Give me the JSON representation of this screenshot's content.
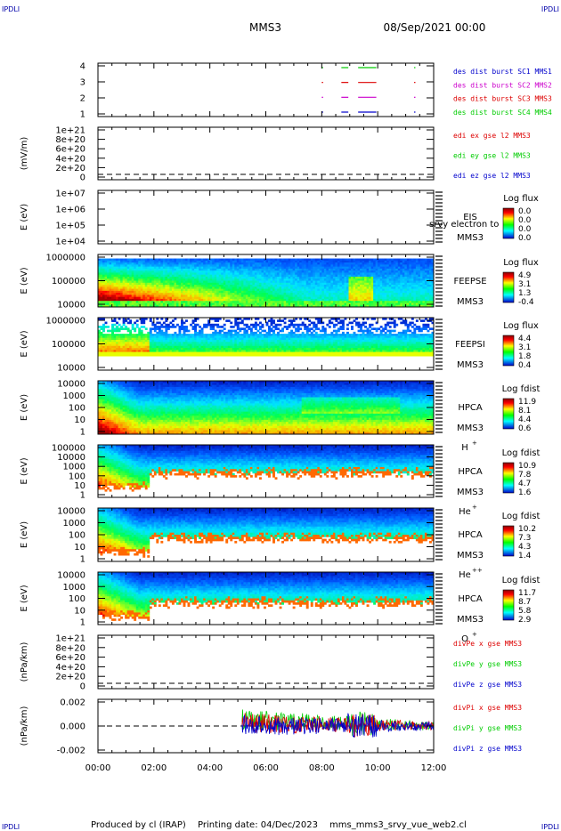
{
  "header": {
    "corner_left": "IPDLI",
    "corner_right": "IPDLI",
    "mission": "MMS3",
    "datetime": "08/Sep/2021 00:00"
  },
  "footer": {
    "produced_by": "Produced by cl (IRAP)",
    "printing_date": "Printing date: 04/Dec/2023",
    "script_name": "mms_mms3_srvy_vue_web2.cl",
    "corner_left": "IPDLI",
    "corner_right": "IPDLI"
  },
  "time_axis": {
    "ticks": [
      "00:00",
      "02:00",
      "04:00",
      "06:00",
      "08:00",
      "10:00",
      "12:00"
    ],
    "range_hours": [
      0,
      12
    ]
  },
  "colors": {
    "mms1": "#0000cc",
    "mms2": "#cc00cc",
    "mms3": "#dd0000",
    "mms4": "#00cc00"
  },
  "chart_data": [
    {
      "type": "scatter",
      "panel": "burst",
      "yticks": [
        "4",
        "3",
        "2",
        "1"
      ],
      "ylim": [
        0.5,
        4.5
      ],
      "legend": [
        {
          "label": "des dist burst SC1 MMS1",
          "color": "#0000cc"
        },
        {
          "label": "des dist burst SC2 MMS2",
          "color": "#cc00cc"
        },
        {
          "label": "des dist burst SC3 MMS3",
          "color": "#dd0000"
        },
        {
          "label": "des dist burst SC4 MMS4",
          "color": "#00cc00"
        }
      ],
      "series": [
        {
          "level": 4,
          "color": "#00cc00",
          "segments": [
            [
              8.0,
              8.05
            ],
            [
              8.7,
              8.95
            ],
            [
              9.3,
              9.95
            ],
            [
              11.3,
              11.33
            ]
          ]
        },
        {
          "level": 3,
          "color": "#dd0000",
          "segments": [
            [
              8.0,
              8.05
            ],
            [
              8.7,
              8.95
            ],
            [
              9.3,
              9.95
            ],
            [
              11.3,
              11.33
            ]
          ]
        },
        {
          "level": 2,
          "color": "#cc00cc",
          "segments": [
            [
              8.0,
              8.05
            ],
            [
              8.7,
              8.95
            ],
            [
              9.3,
              9.95
            ],
            [
              11.3,
              11.33
            ]
          ]
        },
        {
          "level": 1,
          "color": "#0000cc",
          "segments": [
            [
              8.0,
              8.05
            ],
            [
              8.7,
              8.95
            ],
            [
              9.3,
              9.95
            ],
            [
              11.3,
              11.33
            ]
          ]
        }
      ]
    },
    {
      "type": "line",
      "panel": "edi",
      "ylabel": "(mV/m)",
      "yticks": [
        "1e+21",
        "8e+20",
        "6e+20",
        "4e+20",
        "2e+20",
        "0"
      ],
      "legend": [
        {
          "label": "edi ex gse l2 MMS3",
          "color": "#dd0000"
        },
        {
          "label": "edi ey gse l2 MMS3",
          "color": "#00cc00"
        },
        {
          "label": "edi ez gse l2 MMS3",
          "color": "#0000cc"
        }
      ]
    },
    {
      "type": "heatmap",
      "panel": "eis",
      "ylabel": "E (eV)",
      "yticks": [
        "1e+07",
        "1e+06",
        "1e+05",
        "1e+04"
      ],
      "instrument": "EIS",
      "spacecraft": "MMS3",
      "overlay_text": "srvy electron to",
      "colorbar_title": "Log flux",
      "colorbar_ticks": [
        "0.0",
        "0.0",
        "0.0",
        "0.0"
      ]
    },
    {
      "type": "heatmap",
      "panel": "feepse",
      "ylabel": "E (eV)",
      "yticks": [
        "1000000",
        "100000",
        "10000"
      ],
      "instrument": "FEEPSE",
      "spacecraft": "MMS3",
      "colorbar_title": "Log flux",
      "colorbar_ticks": [
        "4.9",
        "3.1",
        "1.3",
        "-0.4"
      ]
    },
    {
      "type": "heatmap",
      "panel": "feepsi",
      "ylabel": "E (eV)",
      "yticks": [
        "1000000",
        "100000",
        "10000"
      ],
      "instrument": "FEEPSI",
      "spacecraft": "MMS3",
      "colorbar_title": "Log flux",
      "colorbar_ticks": [
        "4.4",
        "3.1",
        "1.8",
        "0.4"
      ]
    },
    {
      "type": "heatmap",
      "panel": "hpca_h",
      "ylabel": "E (eV)",
      "yticks": [
        "10000",
        "1000",
        "100",
        "10",
        "1"
      ],
      "instrument": "HPCA",
      "spacecraft": "MMS3",
      "species": "H",
      "species_charge": "+",
      "colorbar_title": "Log fdist",
      "colorbar_ticks": [
        "11.9",
        "8.1",
        "4.4",
        "0.6"
      ]
    },
    {
      "type": "heatmap",
      "panel": "hpca_he",
      "ylabel": "E (eV)",
      "yticks": [
        "100000",
        "10000",
        "1000",
        "100",
        "10",
        "1"
      ],
      "instrument": "HPCA",
      "spacecraft": "MMS3",
      "species": "He",
      "species_charge": "+",
      "colorbar_title": "Log fdist",
      "colorbar_ticks": [
        "10.9",
        "7.8",
        "4.7",
        "1.6"
      ]
    },
    {
      "type": "heatmap",
      "panel": "hpca_hepp",
      "ylabel": "E (eV)",
      "yticks": [
        "10000",
        "1000",
        "100",
        "10",
        "1"
      ],
      "instrument": "HPCA",
      "spacecraft": "MMS3",
      "species": "He",
      "species_charge": "++",
      "colorbar_title": "Log fdist",
      "colorbar_ticks": [
        "10.2",
        "7.3",
        "4.3",
        "1.4"
      ]
    },
    {
      "type": "heatmap",
      "panel": "hpca_o",
      "ylabel": "E (eV)",
      "yticks": [
        "10000",
        "1000",
        "100",
        "10",
        "1"
      ],
      "instrument": "HPCA",
      "spacecraft": "MMS3",
      "species": "O",
      "species_charge": "+",
      "colorbar_title": "Log fdist",
      "colorbar_ticks": [
        "11.7",
        "8.7",
        "5.8",
        "2.9"
      ]
    },
    {
      "type": "line",
      "panel": "divpe",
      "ylabel": "(nPa/km)",
      "yticks": [
        "1e+21",
        "8e+20",
        "6e+20",
        "4e+20",
        "2e+20",
        "0"
      ],
      "legend": [
        {
          "label": "divPe x gse MMS3",
          "color": "#dd0000"
        },
        {
          "label": "divPe y gse MMS3",
          "color": "#00cc00"
        },
        {
          "label": "divPe z gse MMS3",
          "color": "#0000cc"
        }
      ]
    },
    {
      "type": "line",
      "panel": "divpi",
      "ylabel": "(nPa/km)",
      "yticks": [
        "0.002",
        "0.000",
        "-0.002"
      ],
      "ylim": [
        -0.003,
        0.003
      ],
      "data_start_hours": 5.15,
      "legend": [
        {
          "label": "divPi x gse MMS3",
          "color": "#dd0000"
        },
        {
          "label": "divPi y gse MMS3",
          "color": "#00cc00"
        },
        {
          "label": "divPi z gse MMS3",
          "color": "#0000cc"
        }
      ]
    }
  ]
}
